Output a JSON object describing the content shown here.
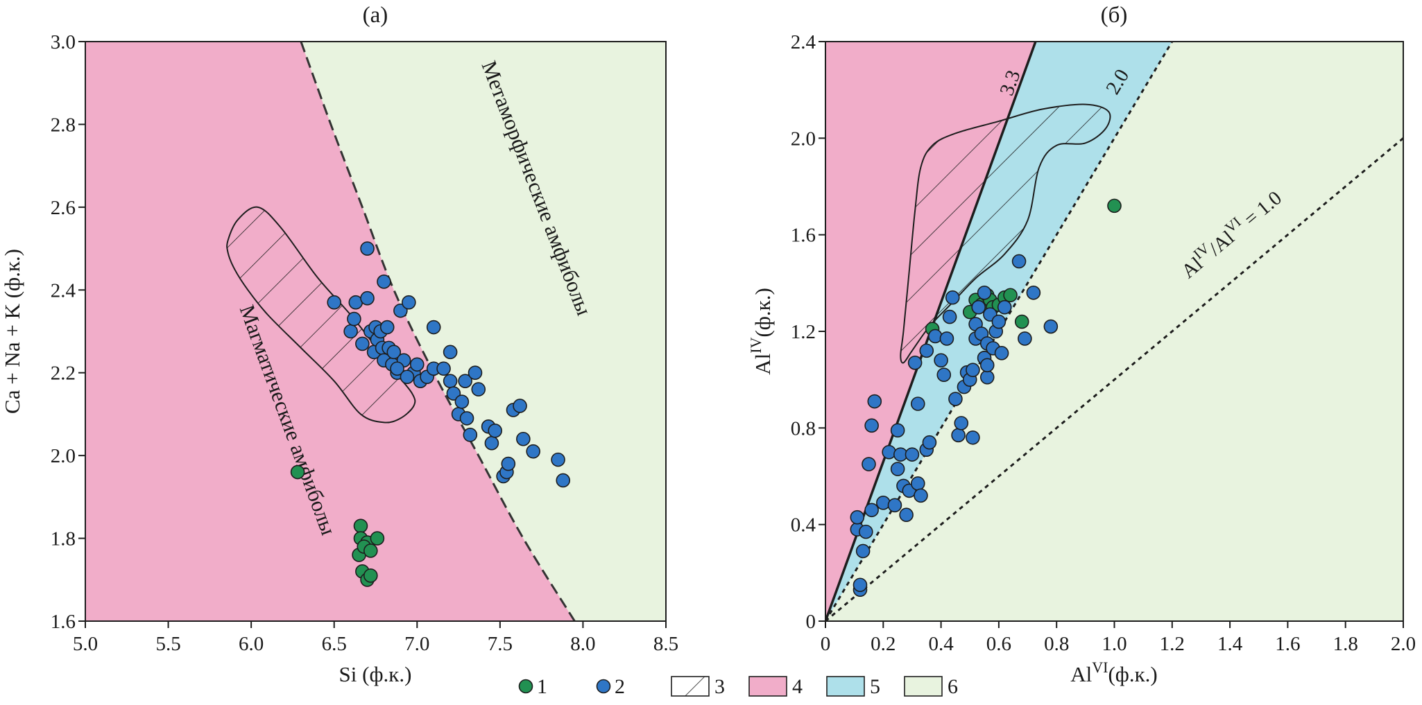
{
  "colors": {
    "magmatic_region": "#f1adc9",
    "metamorphic_region": "#e8f3df",
    "intermediate_region": "#aee0ea",
    "group1_point": "#229152",
    "group2_point": "#2f76c6",
    "point_edge": "#1d1d1d",
    "line": "#1d1d1d"
  },
  "chart_data": [
    {
      "type": "scatter",
      "title": "(а)",
      "xlabel": "Si (ф.к.)",
      "ylabel": "Ca + Na + K (ф.к.)",
      "xlim": [
        5.0,
        8.5
      ],
      "ylim": [
        1.6,
        3.0
      ],
      "xticks": [
        "5.0",
        "5.5",
        "6.0",
        "6.5",
        "7.0",
        "7.5",
        "8.0",
        "8.5"
      ],
      "yticks": [
        "1.6",
        "1.8",
        "2.0",
        "2.2",
        "2.4",
        "2.6",
        "2.8",
        "3.0"
      ],
      "grid": false,
      "regions": [
        {
          "legend_key": "4",
          "label": "Магматические амфиболы",
          "fill": "magmatic_region"
        },
        {
          "legend_key": "6",
          "label": "Метаморфические амфиболы",
          "fill": "metamorphic_region"
        }
      ],
      "boundary": {
        "style": "dashed",
        "points": [
          [
            6.3,
            3.0
          ],
          [
            6.48,
            2.8
          ],
          [
            6.67,
            2.6
          ],
          [
            6.86,
            2.4
          ],
          [
            7.1,
            2.2
          ],
          [
            7.37,
            2.0
          ],
          [
            7.64,
            1.8
          ],
          [
            7.95,
            1.6
          ]
        ]
      },
      "field_3": {
        "legend_key": "3",
        "outline": [
          [
            5.86,
            2.52
          ],
          [
            5.92,
            2.57
          ],
          [
            6.04,
            2.6
          ],
          [
            6.18,
            2.55
          ],
          [
            6.4,
            2.43
          ],
          [
            6.62,
            2.33
          ],
          [
            6.85,
            2.21
          ],
          [
            6.97,
            2.15
          ],
          [
            6.98,
            2.12
          ],
          [
            6.9,
            2.09
          ],
          [
            6.8,
            2.08
          ],
          [
            6.66,
            2.1
          ],
          [
            6.5,
            2.18
          ],
          [
            6.3,
            2.26
          ],
          [
            6.1,
            2.34
          ],
          [
            5.98,
            2.4
          ],
          [
            5.9,
            2.45
          ],
          [
            5.86,
            2.49
          ]
        ]
      },
      "series": [
        {
          "legend_key": "1",
          "color": "group1_point",
          "points": [
            [
              6.28,
              1.96
            ],
            [
              6.66,
              1.83
            ],
            [
              6.66,
              1.8
            ],
            [
              6.7,
              1.79
            ],
            [
              6.65,
              1.76
            ],
            [
              6.68,
              1.78
            ],
            [
              6.72,
              1.77
            ],
            [
              6.76,
              1.8
            ],
            [
              6.67,
              1.72
            ],
            [
              6.7,
              1.7
            ],
            [
              6.72,
              1.71
            ]
          ]
        },
        {
          "legend_key": "2",
          "color": "group2_point",
          "points": [
            [
              6.5,
              2.37
            ],
            [
              6.6,
              2.3
            ],
            [
              6.62,
              2.33
            ],
            [
              6.63,
              2.37
            ],
            [
              6.67,
              2.27
            ],
            [
              6.7,
              2.38
            ],
            [
              6.7,
              2.5
            ],
            [
              6.72,
              2.3
            ],
            [
              6.74,
              2.25
            ],
            [
              6.75,
              2.31
            ],
            [
              6.76,
              2.28
            ],
            [
              6.78,
              2.3
            ],
            [
              6.79,
              2.26
            ],
            [
              6.8,
              2.42
            ],
            [
              6.82,
              2.31
            ],
            [
              6.8,
              2.23
            ],
            [
              6.83,
              2.26
            ],
            [
              6.85,
              2.22
            ],
            [
              6.86,
              2.25
            ],
            [
              6.88,
              2.2
            ],
            [
              6.9,
              2.35
            ],
            [
              6.92,
              2.23
            ],
            [
              6.95,
              2.37
            ],
            [
              6.98,
              2.2
            ],
            [
              7.0,
              2.22
            ],
            [
              7.02,
              2.18
            ],
            [
              7.06,
              2.19
            ],
            [
              7.1,
              2.31
            ],
            [
              7.1,
              2.21
            ],
            [
              7.16,
              2.21
            ],
            [
              7.2,
              2.25
            ],
            [
              7.2,
              2.18
            ],
            [
              7.22,
              2.15
            ],
            [
              7.25,
              2.1
            ],
            [
              7.27,
              2.13
            ],
            [
              7.29,
              2.18
            ],
            [
              7.3,
              2.09
            ],
            [
              7.32,
              2.05
            ],
            [
              7.35,
              2.2
            ],
            [
              7.37,
              2.16
            ],
            [
              7.43,
              2.07
            ],
            [
              7.45,
              2.03
            ],
            [
              7.47,
              2.06
            ],
            [
              7.52,
              1.95
            ],
            [
              7.54,
              1.96
            ],
            [
              7.55,
              1.98
            ],
            [
              7.58,
              2.11
            ],
            [
              7.62,
              2.12
            ],
            [
              7.64,
              2.04
            ],
            [
              7.7,
              2.01
            ],
            [
              7.85,
              1.99
            ],
            [
              7.88,
              1.94
            ],
            [
              6.88,
              2.21
            ],
            [
              6.94,
              2.19
            ]
          ]
        }
      ]
    },
    {
      "type": "scatter",
      "title": "(б)",
      "xlabel": "Al",
      "xlabel_sup": "VI",
      "xlabel_unit": "(ф.к.)",
      "ylabel": "Al",
      "ylabel_sup": "IV",
      "ylabel_unit": "(ф.к.)",
      "xlim": [
        0,
        2.0
      ],
      "ylim": [
        0,
        2.4
      ],
      "xticks": [
        "0",
        "0.2",
        "0.4",
        "0.6",
        "0.8",
        "1.0",
        "1.2",
        "1.4",
        "1.6",
        "1.8",
        "2.0"
      ],
      "yticks": [
        "0",
        "0.4",
        "0.8",
        "1.2",
        "1.6",
        "2.0",
        "2.4"
      ],
      "grid": false,
      "regions": [
        {
          "legend_key": "4",
          "fill": "magmatic_region",
          "between": "above ratio 3.3"
        },
        {
          "legend_key": "5",
          "fill": "intermediate_region",
          "between": "ratio 2.0 to 3.3"
        },
        {
          "legend_key": "6",
          "fill": "metamorphic_region",
          "between": "below ratio 2.0"
        }
      ],
      "ratio_lines": [
        {
          "ratio": 3.3,
          "style": "solid",
          "label": "3.3"
        },
        {
          "ratio": 2.0,
          "style": "dotted",
          "label": "2.0"
        },
        {
          "ratio": 1.0,
          "style": "dotted",
          "label_main": "Al",
          "label_sup1": "IV",
          "label_mid": "/Al",
          "label_sup2": "VI",
          "label_end": " = 1.0"
        }
      ],
      "field_3": {
        "legend_key": "3",
        "outline": [
          [
            0.26,
            1.1
          ],
          [
            0.27,
            1.2
          ],
          [
            0.29,
            1.45
          ],
          [
            0.31,
            1.7
          ],
          [
            0.33,
            1.88
          ],
          [
            0.37,
            1.97
          ],
          [
            0.45,
            2.02
          ],
          [
            0.6,
            2.07
          ],
          [
            0.75,
            2.12
          ],
          [
            0.9,
            2.14
          ],
          [
            0.98,
            2.11
          ],
          [
            0.97,
            2.04
          ],
          [
            0.9,
            1.98
          ],
          [
            0.8,
            1.97
          ],
          [
            0.74,
            1.88
          ],
          [
            0.7,
            1.66
          ],
          [
            0.62,
            1.52
          ],
          [
            0.52,
            1.42
          ],
          [
            0.44,
            1.32
          ],
          [
            0.36,
            1.22
          ],
          [
            0.3,
            1.12
          ],
          [
            0.27,
            1.07
          ]
        ]
      },
      "series": [
        {
          "legend_key": "1",
          "color": "group1_point",
          "points": [
            [
              1.0,
              1.72
            ],
            [
              0.37,
              1.21
            ],
            [
              0.5,
              1.28
            ],
            [
              0.52,
              1.33
            ],
            [
              0.54,
              1.31
            ],
            [
              0.56,
              1.35
            ],
            [
              0.57,
              1.33
            ],
            [
              0.58,
              1.3
            ],
            [
              0.6,
              1.31
            ],
            [
              0.62,
              1.34
            ],
            [
              0.64,
              1.35
            ],
            [
              0.68,
              1.24
            ],
            [
              0.53,
              1.3
            ]
          ]
        },
        {
          "legend_key": "2",
          "color": "group2_point",
          "points": [
            [
              0.12,
              0.13
            ],
            [
              0.12,
              0.15
            ],
            [
              0.11,
              0.38
            ],
            [
              0.11,
              0.43
            ],
            [
              0.13,
              0.29
            ],
            [
              0.14,
              0.37
            ],
            [
              0.15,
              0.65
            ],
            [
              0.16,
              0.46
            ],
            [
              0.16,
              0.81
            ],
            [
              0.17,
              0.91
            ],
            [
              0.2,
              0.49
            ],
            [
              0.22,
              0.7
            ],
            [
              0.24,
              0.48
            ],
            [
              0.25,
              0.63
            ],
            [
              0.25,
              0.79
            ],
            [
              0.26,
              0.69
            ],
            [
              0.27,
              0.56
            ],
            [
              0.28,
              0.44
            ],
            [
              0.29,
              0.54
            ],
            [
              0.3,
              0.69
            ],
            [
              0.31,
              1.07
            ],
            [
              0.32,
              0.57
            ],
            [
              0.32,
              0.9
            ],
            [
              0.33,
              0.52
            ],
            [
              0.35,
              0.71
            ],
            [
              0.35,
              1.12
            ],
            [
              0.36,
              0.74
            ],
            [
              0.38,
              1.18
            ],
            [
              0.4,
              1.08
            ],
            [
              0.41,
              1.02
            ],
            [
              0.42,
              1.17
            ],
            [
              0.43,
              1.26
            ],
            [
              0.44,
              1.34
            ],
            [
              0.45,
              0.92
            ],
            [
              0.46,
              0.77
            ],
            [
              0.47,
              0.82
            ],
            [
              0.48,
              0.97
            ],
            [
              0.49,
              1.03
            ],
            [
              0.5,
              1.0
            ],
            [
              0.51,
              0.76
            ],
            [
              0.51,
              1.04
            ],
            [
              0.52,
              1.23
            ],
            [
              0.52,
              1.17
            ],
            [
              0.53,
              1.3
            ],
            [
              0.54,
              1.19
            ],
            [
              0.55,
              1.09
            ],
            [
              0.55,
              1.36
            ],
            [
              0.56,
              1.01
            ],
            [
              0.56,
              1.15
            ],
            [
              0.57,
              1.27
            ],
            [
              0.58,
              1.13
            ],
            [
              0.59,
              1.2
            ],
            [
              0.6,
              1.24
            ],
            [
              0.61,
              1.11
            ],
            [
              0.62,
              1.3
            ],
            [
              0.67,
              1.49
            ],
            [
              0.69,
              1.17
            ],
            [
              0.72,
              1.36
            ],
            [
              0.78,
              1.22
            ],
            [
              0.56,
              1.06
            ]
          ]
        }
      ]
    }
  ],
  "legend": [
    {
      "key": "1",
      "label": "1",
      "kind": "marker",
      "color": "group1_point"
    },
    {
      "key": "2",
      "label": "2",
      "kind": "marker",
      "color": "group2_point"
    },
    {
      "key": "3",
      "label": "3",
      "kind": "hatch"
    },
    {
      "key": "4",
      "label": "4",
      "kind": "swatch",
      "color": "magmatic_region"
    },
    {
      "key": "5",
      "label": "5",
      "kind": "swatch",
      "color": "intermediate_region"
    },
    {
      "key": "6",
      "label": "6",
      "kind": "swatch",
      "color": "metamorphic_region"
    }
  ]
}
